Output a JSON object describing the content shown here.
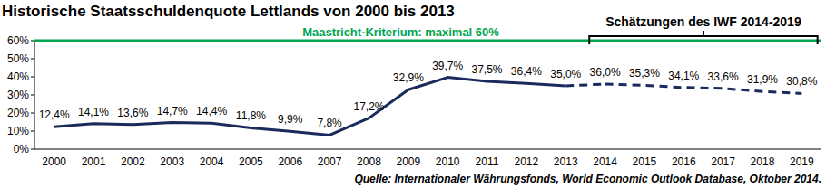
{
  "chart_data": {
    "type": "line",
    "title": "Historische Staatsschuldenquote Lettlands von 2000 bis 2013",
    "source": "Quelle: Internationaler Währungsfonds, World Economic Outlook Database, Oktober 2014.",
    "categories": [
      "2000",
      "2001",
      "2002",
      "2003",
      "2004",
      "2005",
      "2006",
      "2007",
      "2008",
      "2009",
      "2010",
      "2011",
      "2012",
      "2013",
      "2014",
      "2015",
      "2016",
      "2017",
      "2018",
      "2019"
    ],
    "series": [
      {
        "color": "#1b2a5c",
        "line_style": "solid",
        "values": [
          12.4,
          14.1,
          13.6,
          14.7,
          14.4,
          11.8,
          9.9,
          7.8,
          17.2,
          32.9,
          39.7,
          37.5,
          36.4,
          35.0,
          null,
          null,
          null,
          null,
          null,
          null
        ],
        "value_labels": [
          "12,4%",
          "14,1%",
          "13,6%",
          "14,7%",
          "14,4%",
          "11,8%",
          "9,9%",
          "7,8%",
          "17,2%",
          "32,9%",
          "39,7%",
          "37,5%",
          "36,4%",
          "35,0%",
          null,
          null,
          null,
          null,
          null,
          null
        ]
      },
      {
        "name": "Schätzungen des IWF 2014-2019",
        "color": "#1b2a5c",
        "line_style": "dashed",
        "values": [
          null,
          null,
          null,
          null,
          null,
          null,
          null,
          null,
          null,
          null,
          null,
          null,
          null,
          null,
          36.0,
          35.3,
          34.1,
          33.6,
          31.9,
          30.8
        ],
        "value_labels": [
          null,
          null,
          null,
          null,
          null,
          null,
          null,
          null,
          null,
          null,
          null,
          null,
          null,
          null,
          "36,0%",
          "35,3%",
          "34,1%",
          "33,6%",
          "31,9%",
          "30,8%"
        ]
      }
    ],
    "reference_lines": [
      {
        "value": 60,
        "label": "Maastricht-Kriterium: maximal 60%",
        "color": "#00a651"
      }
    ],
    "ylim": [
      0,
      60
    ],
    "yticks": [
      {
        "value": 0,
        "label": "0%"
      },
      {
        "value": 10,
        "label": "10%"
      },
      {
        "value": 20,
        "label": "20%"
      },
      {
        "value": 30,
        "label": "30%"
      },
      {
        "value": 40,
        "label": "40%"
      },
      {
        "value": 50,
        "label": "50%"
      },
      {
        "value": 60,
        "label": "60%"
      }
    ],
    "grid": false,
    "data_labels": true
  }
}
